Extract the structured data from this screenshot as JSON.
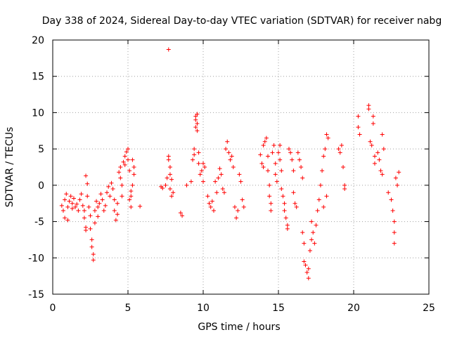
{
  "chart_data": {
    "type": "scatter",
    "title": "Day 338 of 2024, Sidereal Day-to-day VTEC variation (SDTVAR) for receiver nabg",
    "xlabel": "GPS time / hours",
    "ylabel": "SDTVAR / TECUs",
    "xlim": [
      0,
      25
    ],
    "ylim": [
      -15,
      20
    ],
    "xticks": [
      0,
      5,
      10,
      15,
      20,
      25
    ],
    "yticks": [
      -15,
      -10,
      -5,
      0,
      5,
      10,
      15,
      20
    ],
    "xtick_labels": [
      "0",
      "5",
      "10",
      "15",
      "20",
      "25"
    ],
    "ytick_labels": [
      "-15",
      "-10",
      "-5",
      "0",
      "5",
      "10",
      "15",
      "20"
    ],
    "grid": true,
    "marker": "+",
    "color": "#ff0000",
    "series": [
      {
        "name": "SDTVAR",
        "points": [
          [
            0.6,
            -2.8
          ],
          [
            0.7,
            -3.5
          ],
          [
            0.8,
            -4.5
          ],
          [
            0.8,
            -2.0
          ],
          [
            0.9,
            -1.2
          ],
          [
            1.0,
            -3.0
          ],
          [
            1.0,
            -4.8
          ],
          [
            1.1,
            -2.2
          ],
          [
            1.2,
            -1.5
          ],
          [
            1.3,
            -3.2
          ],
          [
            1.3,
            -2.5
          ],
          [
            1.4,
            -1.8
          ],
          [
            1.5,
            -3.0
          ],
          [
            1.6,
            -2.6
          ],
          [
            1.7,
            -3.5
          ],
          [
            1.8,
            -2.0
          ],
          [
            1.9,
            -1.2
          ],
          [
            2.0,
            -2.8
          ],
          [
            2.1,
            -3.5
          ],
          [
            2.1,
            -4.5
          ],
          [
            2.2,
            -5.8
          ],
          [
            2.2,
            -6.2
          ],
          [
            2.2,
            1.3
          ],
          [
            2.3,
            0.2
          ],
          [
            2.3,
            -1.5
          ],
          [
            2.4,
            -3.0
          ],
          [
            2.5,
            -4.2
          ],
          [
            2.5,
            -6.0
          ],
          [
            2.6,
            -7.5
          ],
          [
            2.6,
            -8.5
          ],
          [
            2.7,
            -9.5
          ],
          [
            2.7,
            -10.3
          ],
          [
            2.8,
            -5.2
          ],
          [
            2.8,
            -3.5
          ],
          [
            2.9,
            -2.2
          ],
          [
            3.0,
            -3.0
          ],
          [
            3.0,
            -4.3
          ],
          [
            3.1,
            -2.5
          ],
          [
            3.2,
            -1.2
          ],
          [
            3.3,
            -2.0
          ],
          [
            3.4,
            -3.5
          ],
          [
            3.5,
            -2.8
          ],
          [
            3.6,
            -1.0
          ],
          [
            3.7,
            -0.2
          ],
          [
            3.8,
            -1.5
          ],
          [
            3.9,
            0.3
          ],
          [
            4.0,
            -0.5
          ],
          [
            4.1,
            -2.0
          ],
          [
            4.1,
            -3.5
          ],
          [
            4.2,
            -4.8
          ],
          [
            4.3,
            -4.0
          ],
          [
            4.3,
            -2.5
          ],
          [
            4.4,
            1.8
          ],
          [
            4.5,
            2.5
          ],
          [
            4.5,
            1.0
          ],
          [
            4.6,
            0.0
          ],
          [
            4.6,
            -1.5
          ],
          [
            4.7,
            3.2
          ],
          [
            4.8,
            4.0
          ],
          [
            4.8,
            2.8
          ],
          [
            4.9,
            4.6
          ],
          [
            5.0,
            5.0
          ],
          [
            5.0,
            3.5
          ],
          [
            5.1,
            2.0
          ],
          [
            5.1,
            -2.0
          ],
          [
            5.2,
            -3.0
          ],
          [
            5.2,
            -1.5
          ],
          [
            5.3,
            3.5
          ],
          [
            5.4,
            2.5
          ],
          [
            5.4,
            1.5
          ],
          [
            5.3,
            0.0
          ],
          [
            5.2,
            -0.8
          ],
          [
            5.8,
            -2.9
          ],
          [
            7.2,
            -0.2
          ],
          [
            7.3,
            -0.4
          ],
          [
            7.5,
            0.0
          ],
          [
            7.6,
            1.0
          ],
          [
            7.7,
            3.5
          ],
          [
            7.7,
            4.0
          ],
          [
            7.8,
            2.5
          ],
          [
            7.8,
            1.5
          ],
          [
            7.8,
            -0.5
          ],
          [
            7.9,
            0.8
          ],
          [
            7.9,
            -1.5
          ],
          [
            8.0,
            -1.0
          ],
          [
            8.5,
            -3.8
          ],
          [
            8.6,
            -4.2
          ],
          [
            8.9,
            0.0
          ],
          [
            9.2,
            0.5
          ],
          [
            9.3,
            3.5
          ],
          [
            9.4,
            4.2
          ],
          [
            9.4,
            5.0
          ],
          [
            9.5,
            9.5
          ],
          [
            9.5,
            9.0
          ],
          [
            9.5,
            8.0
          ],
          [
            9.6,
            9.8
          ],
          [
            9.6,
            8.5
          ],
          [
            9.6,
            7.5
          ],
          [
            9.7,
            4.5
          ],
          [
            9.7,
            3.0
          ],
          [
            9.8,
            1.5
          ],
          [
            9.9,
            2.0
          ],
          [
            10.0,
            3.0
          ],
          [
            10.0,
            0.5
          ],
          [
            10.1,
            2.5
          ],
          [
            10.3,
            -1.5
          ],
          [
            10.4,
            -2.5
          ],
          [
            10.5,
            -3.0
          ],
          [
            10.6,
            -2.2
          ],
          [
            10.7,
            -3.5
          ],
          [
            10.8,
            0.5
          ],
          [
            10.9,
            -1.0
          ],
          [
            11.0,
            1.0
          ],
          [
            11.1,
            2.3
          ],
          [
            11.2,
            1.5
          ],
          [
            11.3,
            -0.5
          ],
          [
            11.4,
            -1.0
          ],
          [
            11.5,
            5.0
          ],
          [
            11.6,
            6.0
          ],
          [
            11.7,
            4.5
          ],
          [
            11.8,
            3.5
          ],
          [
            11.9,
            4.0
          ],
          [
            12.0,
            2.5
          ],
          [
            12.1,
            -3.0
          ],
          [
            12.2,
            -4.5
          ],
          [
            12.3,
            -3.5
          ],
          [
            12.4,
            1.5
          ],
          [
            12.5,
            0.5
          ],
          [
            12.6,
            -2.0
          ],
          [
            12.7,
            -3.0
          ],
          [
            13.8,
            4.2
          ],
          [
            13.9,
            3.0
          ],
          [
            14.0,
            2.5
          ],
          [
            14.0,
            5.5
          ],
          [
            14.1,
            6.0
          ],
          [
            14.2,
            6.5
          ],
          [
            14.3,
            4.0
          ],
          [
            14.3,
            2.0
          ],
          [
            14.4,
            0.0
          ],
          [
            14.4,
            -1.5
          ],
          [
            14.5,
            -2.5
          ],
          [
            14.5,
            -3.5
          ],
          [
            14.6,
            4.5
          ],
          [
            14.7,
            5.5
          ],
          [
            14.8,
            3.0
          ],
          [
            14.8,
            1.5
          ],
          [
            14.9,
            0.5
          ],
          [
            15.0,
            4.5
          ],
          [
            15.1,
            5.5
          ],
          [
            15.1,
            3.5
          ],
          [
            15.2,
            2.0
          ],
          [
            15.2,
            -0.5
          ],
          [
            15.3,
            -1.5
          ],
          [
            15.4,
            -2.5
          ],
          [
            15.4,
            -3.5
          ],
          [
            15.5,
            -4.5
          ],
          [
            15.6,
            -5.5
          ],
          [
            15.6,
            -6.0
          ],
          [
            15.7,
            5.0
          ],
          [
            15.8,
            4.5
          ],
          [
            15.9,
            3.5
          ],
          [
            16.0,
            2.0
          ],
          [
            16.0,
            -1.0
          ],
          [
            16.1,
            -2.5
          ],
          [
            16.2,
            -3.0
          ],
          [
            16.3,
            4.5
          ],
          [
            16.4,
            3.5
          ],
          [
            16.5,
            2.5
          ],
          [
            16.6,
            1.0
          ],
          [
            16.6,
            -6.5
          ],
          [
            16.7,
            -8.0
          ],
          [
            16.7,
            -10.5
          ],
          [
            16.8,
            -11.0
          ],
          [
            16.9,
            -12.0
          ],
          [
            17.0,
            -12.8
          ],
          [
            17.0,
            -11.5
          ],
          [
            17.1,
            -9.0
          ],
          [
            17.2,
            -7.5
          ],
          [
            17.2,
            -5.0
          ],
          [
            17.3,
            -6.5
          ],
          [
            17.4,
            -8.0
          ],
          [
            17.5,
            -5.5
          ],
          [
            17.6,
            -3.5
          ],
          [
            17.7,
            -2.0
          ],
          [
            17.8,
            0.0
          ],
          [
            17.9,
            2.0
          ],
          [
            18.0,
            4.0
          ],
          [
            18.1,
            5.0
          ],
          [
            18.2,
            7.0
          ],
          [
            18.3,
            6.5
          ],
          [
            18.0,
            -3.0
          ],
          [
            18.2,
            -1.5
          ],
          [
            19.0,
            5.0
          ],
          [
            19.1,
            4.5
          ],
          [
            19.2,
            5.5
          ],
          [
            19.3,
            2.5
          ],
          [
            19.4,
            0.0
          ],
          [
            19.4,
            -0.5
          ],
          [
            20.3,
            9.5
          ],
          [
            20.3,
            8.0
          ],
          [
            20.4,
            7.0
          ],
          [
            21.0,
            11.0
          ],
          [
            21.0,
            10.5
          ],
          [
            21.1,
            6.0
          ],
          [
            21.2,
            5.5
          ],
          [
            21.3,
            8.5
          ],
          [
            21.3,
            9.5
          ],
          [
            21.4,
            4.0
          ],
          [
            21.4,
            3.0
          ],
          [
            21.6,
            4.5
          ],
          [
            21.7,
            3.5
          ],
          [
            21.8,
            2.0
          ],
          [
            21.9,
            1.5
          ],
          [
            21.9,
            7.0
          ],
          [
            22.0,
            5.0
          ],
          [
            22.3,
            -1.0
          ],
          [
            22.5,
            -2.0
          ],
          [
            22.6,
            -3.5
          ],
          [
            22.7,
            -5.0
          ],
          [
            22.7,
            -6.5
          ],
          [
            22.7,
            -8.0
          ],
          [
            22.8,
            1.0
          ],
          [
            22.9,
            0.0
          ],
          [
            23.0,
            1.8
          ],
          [
            7.7,
            18.7
          ]
        ]
      }
    ]
  }
}
